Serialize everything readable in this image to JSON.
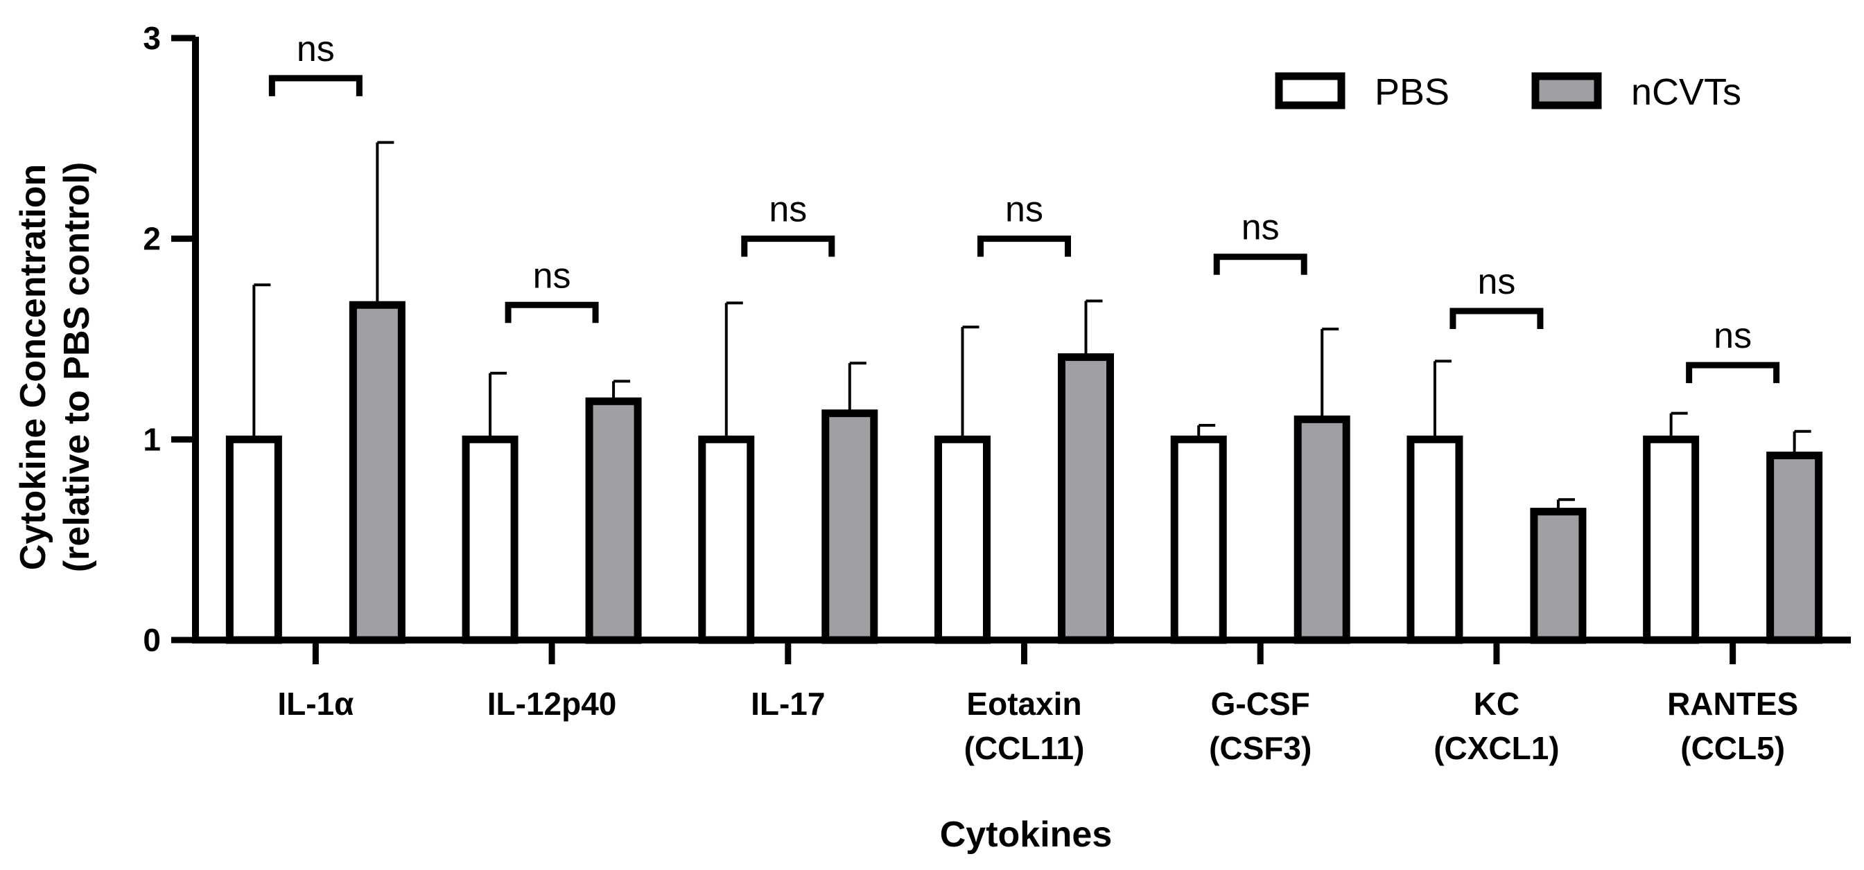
{
  "chart_data": {
    "type": "bar",
    "title": "",
    "xlabel": "Cytokines",
    "ylabel": [
      "Cytokine Concentration",
      "(relative to PBS control)"
    ],
    "ylim": [
      0,
      3
    ],
    "yticks": [
      "0",
      "1",
      "2",
      "3"
    ],
    "categories": [
      [
        "IL-1α"
      ],
      [
        "IL-12p40"
      ],
      [
        "IL-17"
      ],
      [
        "Eotaxin",
        "(CCL11)"
      ],
      [
        "G-CSF",
        "(CSF3)"
      ],
      [
        "KC",
        "(CXCL1)"
      ],
      [
        "RANTES",
        "(CCL5)"
      ]
    ],
    "series": [
      {
        "name": "PBS",
        "color": "#ffffff",
        "values": [
          1,
          1,
          1,
          1,
          1,
          1,
          1
        ],
        "errors": [
          0.77,
          0.33,
          0.68,
          0.56,
          0.07,
          0.39,
          0.13
        ]
      },
      {
        "name": "nCVTs",
        "color": "#a0a0a4",
        "values": [
          1.67,
          1.19,
          1.13,
          1.41,
          1.1,
          0.64,
          0.92
        ],
        "errors": [
          0.81,
          0.1,
          0.25,
          0.28,
          0.45,
          0.06,
          0.12
        ]
      }
    ],
    "significance": [
      {
        "label": "ns",
        "level": 2.8
      },
      {
        "label": "ns",
        "level": 1.67
      },
      {
        "label": "ns",
        "level": 2.0
      },
      {
        "label": "ns",
        "level": 2.0
      },
      {
        "label": "ns",
        "level": 1.91
      },
      {
        "label": "ns",
        "level": 1.64
      },
      {
        "label": "ns",
        "level": 1.37
      }
    ],
    "legend_position": "top-right"
  }
}
